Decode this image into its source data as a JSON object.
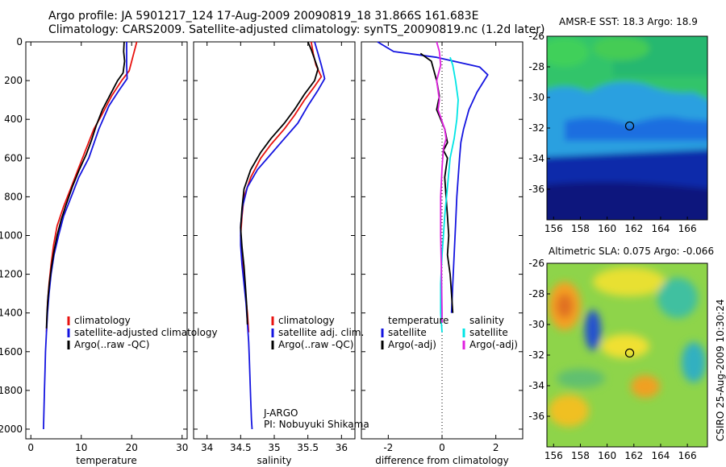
{
  "title_line1": "Argo profile: JA 5901217_124 17-Aug-2009 20090819_18 31.866S 161.683E",
  "title_line2": "Climatology: CARS2009. Satellite-adjusted climatology: synTS_20090819.nc (1.2d later)",
  "credit": "CSIRO 25-Aug-2009 10:30:24",
  "institution": "J-ARGO",
  "pi": "PI: Nobuyuki Shikama",
  "chart_data": [
    {
      "type": "line",
      "name": "temperature-profile",
      "xlabel": "temperature",
      "xlim": [
        -1,
        31
      ],
      "ylim": [
        2050,
        0
      ],
      "x_ticks": [
        0,
        10,
        20,
        30
      ],
      "y_ticks": [
        0,
        200,
        400,
        600,
        800,
        1000,
        1200,
        1400,
        1600,
        1800,
        2000
      ],
      "legend": [
        "climatology",
        "satellite-adjusted climatology",
        "Argo(..raw -QC)"
      ],
      "legend_loc": "lower-right",
      "series": [
        {
          "name": "climatology",
          "color": "#e8120f",
          "points": [
            [
              21,
              0
            ],
            [
              20.8,
              20
            ],
            [
              20.2,
              80
            ],
            [
              19.5,
              150
            ],
            [
              18,
              200
            ],
            [
              16,
              280
            ],
            [
              14,
              380
            ],
            [
              12.5,
              450
            ],
            [
              11,
              550
            ],
            [
              9.5,
              650
            ],
            [
              8,
              750
            ],
            [
              6.5,
              850
            ],
            [
              5.2,
              950
            ],
            [
              4.5,
              1050
            ],
            [
              4,
              1150
            ],
            [
              3.6,
              1250
            ],
            [
              3.3,
              1350
            ],
            [
              3.1,
              1500
            ]
          ]
        },
        {
          "name": "satellite-adjusted climatology",
          "color": "#1414e0",
          "points": [
            [
              19,
              0
            ],
            [
              19,
              60
            ],
            [
              19,
              120
            ],
            [
              19.1,
              190
            ],
            [
              17.5,
              250
            ],
            [
              15.5,
              330
            ],
            [
              13.5,
              450
            ],
            [
              11.5,
              600
            ],
            [
              9.5,
              700
            ],
            [
              8,
              800
            ],
            [
              6.5,
              900
            ],
            [
              5.5,
              1000
            ],
            [
              4.6,
              1100
            ],
            [
              4,
              1200
            ],
            [
              3.6,
              1300
            ],
            [
              3.3,
              1400
            ],
            [
              3.1,
              1500
            ],
            [
              2.9,
              1600
            ],
            [
              2.8,
              1700
            ],
            [
              2.7,
              1800
            ],
            [
              2.6,
              1900
            ],
            [
              2.5,
              2000
            ]
          ]
        },
        {
          "name": "Argo(..raw -QC)",
          "color": "#000000",
          "points": [
            [
              18.5,
              0
            ],
            [
              18.4,
              50
            ],
            [
              18.6,
              100
            ],
            [
              18.3,
              160
            ],
            [
              17.2,
              200
            ],
            [
              15.8,
              270
            ],
            [
              14.2,
              350
            ],
            [
              13,
              430
            ],
            [
              12,
              510
            ],
            [
              11,
              580
            ],
            [
              9.6,
              660
            ],
            [
              8.2,
              750
            ],
            [
              7,
              840
            ],
            [
              6,
              920
            ],
            [
              5.2,
              1000
            ],
            [
              4.6,
              1080
            ],
            [
              4.1,
              1160
            ],
            [
              3.7,
              1240
            ],
            [
              3.4,
              1320
            ],
            [
              3.2,
              1400
            ],
            [
              3.1,
              1480
            ]
          ]
        }
      ]
    },
    {
      "type": "line",
      "name": "salinity-profile",
      "xlabel": "salinity",
      "xlim": [
        33.8,
        36.2
      ],
      "ylim": [
        2050,
        0
      ],
      "x_ticks": [
        34,
        34.5,
        35,
        35.5,
        36
      ],
      "legend": [
        "climatology",
        "satellite adj. clim.",
        "Argo(..raw -QC)"
      ],
      "legend_loc": "lower-right",
      "series": [
        {
          "name": "climatology",
          "color": "#e8120f",
          "points": [
            [
              35.55,
              0
            ],
            [
              35.58,
              60
            ],
            [
              35.62,
              120
            ],
            [
              35.7,
              180
            ],
            [
              35.6,
              230
            ],
            [
              35.45,
              300
            ],
            [
              35.3,
              380
            ],
            [
              35.15,
              450
            ],
            [
              34.95,
              530
            ],
            [
              34.8,
              600
            ],
            [
              34.65,
              700
            ],
            [
              34.55,
              800
            ],
            [
              34.52,
              900
            ],
            [
              34.5,
              1000
            ],
            [
              34.52,
              1100
            ],
            [
              34.55,
              1200
            ],
            [
              34.57,
              1300
            ],
            [
              34.6,
              1400
            ],
            [
              34.62,
              1500
            ]
          ]
        },
        {
          "name": "satellite adj. clim.",
          "color": "#1414e0",
          "points": [
            [
              35.6,
              0
            ],
            [
              35.65,
              60
            ],
            [
              35.7,
              120
            ],
            [
              35.75,
              190
            ],
            [
              35.65,
              250
            ],
            [
              35.5,
              330
            ],
            [
              35.35,
              420
            ],
            [
              35.15,
              500
            ],
            [
              34.95,
              580
            ],
            [
              34.75,
              660
            ],
            [
              34.6,
              750
            ],
            [
              34.53,
              850
            ],
            [
              34.5,
              950
            ],
            [
              34.5,
              1050
            ],
            [
              34.52,
              1150
            ],
            [
              34.55,
              1250
            ],
            [
              34.58,
              1350
            ],
            [
              34.6,
              1450
            ],
            [
              34.62,
              1550
            ],
            [
              34.63,
              1650
            ],
            [
              34.64,
              1750
            ],
            [
              34.65,
              1850
            ],
            [
              34.66,
              1950
            ],
            [
              34.67,
              2000
            ]
          ]
        },
        {
          "name": "Argo(..raw -QC)",
          "color": "#000000",
          "points": [
            [
              35.5,
              0
            ],
            [
              35.55,
              40
            ],
            [
              35.6,
              90
            ],
            [
              35.65,
              140
            ],
            [
              35.6,
              200
            ],
            [
              35.45,
              270
            ],
            [
              35.3,
              350
            ],
            [
              35.15,
              420
            ],
            [
              34.95,
              500
            ],
            [
              34.8,
              570
            ],
            [
              34.65,
              660
            ],
            [
              34.55,
              760
            ],
            [
              34.52,
              860
            ],
            [
              34.5,
              960
            ],
            [
              34.52,
              1060
            ],
            [
              34.55,
              1160
            ],
            [
              34.57,
              1260
            ],
            [
              34.59,
              1360
            ],
            [
              34.6,
              1460
            ]
          ]
        }
      ]
    },
    {
      "type": "line",
      "name": "difference-profile",
      "xlabel": "difference from climatology",
      "xlim": [
        -3,
        3
      ],
      "ylim": [
        2050,
        0
      ],
      "x_ticks": [
        -2,
        0,
        2
      ],
      "legend": [
        "temperature",
        "satellite",
        "Argo(-adj)",
        "salinity",
        "satellite",
        "Argo(-adj)"
      ],
      "legend_loc": "lower",
      "series": [
        {
          "name": "temperature satellite",
          "color": "#1414e0",
          "points": [
            [
              -2.4,
              0
            ],
            [
              -1.8,
              50
            ],
            [
              -0.2,
              80
            ],
            [
              1.4,
              130
            ],
            [
              1.7,
              170
            ],
            [
              1.3,
              260
            ],
            [
              1,
              350
            ],
            [
              0.8,
              450
            ],
            [
              0.7,
              520
            ],
            [
              0.65,
              600
            ],
            [
              0.6,
              700
            ],
            [
              0.55,
              800
            ],
            [
              0.5,
              950
            ],
            [
              0.45,
              1100
            ],
            [
              0.4,
              1250
            ],
            [
              0.35,
              1400
            ]
          ]
        },
        {
          "name": "temperature Argo(-adj)",
          "color": "#000000",
          "points": [
            [
              -0.8,
              60
            ],
            [
              -0.4,
              100
            ],
            [
              -0.2,
              200
            ],
            [
              -0.1,
              280
            ],
            [
              -0.2,
              350
            ],
            [
              0.1,
              450
            ],
            [
              0.2,
              520
            ],
            [
              0.05,
              560
            ],
            [
              0.2,
              600
            ],
            [
              0.1,
              700
            ],
            [
              0.15,
              800
            ],
            [
              0.2,
              900
            ],
            [
              0.25,
              1000
            ],
            [
              0.2,
              1100
            ],
            [
              0.3,
              1200
            ],
            [
              0.35,
              1300
            ],
            [
              0.4,
              1400
            ]
          ]
        },
        {
          "name": "salinity satellite",
          "color": "#00e5e5",
          "points": [
            [
              0.3,
              80
            ],
            [
              0.4,
              120
            ],
            [
              0.5,
              200
            ],
            [
              0.6,
              300
            ],
            [
              0.55,
              400
            ],
            [
              0.45,
              500
            ],
            [
              0.3,
              600
            ],
            [
              0.2,
              750
            ],
            [
              0.1,
              900
            ],
            [
              0.05,
              1000
            ],
            [
              0,
              1100
            ],
            [
              -0.05,
              1250
            ],
            [
              -0.05,
              1400
            ],
            [
              0,
              1500
            ]
          ]
        },
        {
          "name": "salinity Argo(-adj)",
          "color": "#e020e0",
          "points": [
            [
              -0.2,
              0
            ],
            [
              -0.1,
              50
            ],
            [
              -0.05,
              120
            ],
            [
              -0.2,
              200
            ],
            [
              -0.1,
              300
            ],
            [
              -0.15,
              350
            ],
            [
              0.1,
              450
            ],
            [
              0.15,
              500
            ],
            [
              0.05,
              550
            ],
            [
              0,
              650
            ],
            [
              -0.05,
              800
            ],
            [
              -0.05,
              1000
            ],
            [
              -0.02,
              1200
            ],
            [
              0,
              1400
            ],
            [
              0,
              1450
            ]
          ]
        }
      ]
    },
    {
      "type": "heatmap",
      "name": "amsr-sst-map",
      "title": "AMSR-E SST: 18.3 Argo: 18.9",
      "xlim": [
        155.5,
        167.5
      ],
      "ylim": [
        -38,
        -26
      ],
      "x_ticks": [
        156,
        158,
        160,
        162,
        164,
        166
      ],
      "y_ticks": [
        -26,
        -28,
        -30,
        -32,
        -34,
        -36
      ],
      "marker": [
        161.683,
        -31.866
      ]
    },
    {
      "type": "heatmap",
      "name": "altimetric-sla-map",
      "title": "Altimetric SLA: 0.075 Argo: -0.066",
      "xlim": [
        155.5,
        167.5
      ],
      "ylim": [
        -38,
        -26
      ],
      "x_ticks": [
        156,
        158,
        160,
        162,
        164,
        166
      ],
      "y_ticks": [
        -26,
        -28,
        -30,
        -32,
        -34,
        -36
      ],
      "marker": [
        161.683,
        -31.866
      ]
    }
  ]
}
